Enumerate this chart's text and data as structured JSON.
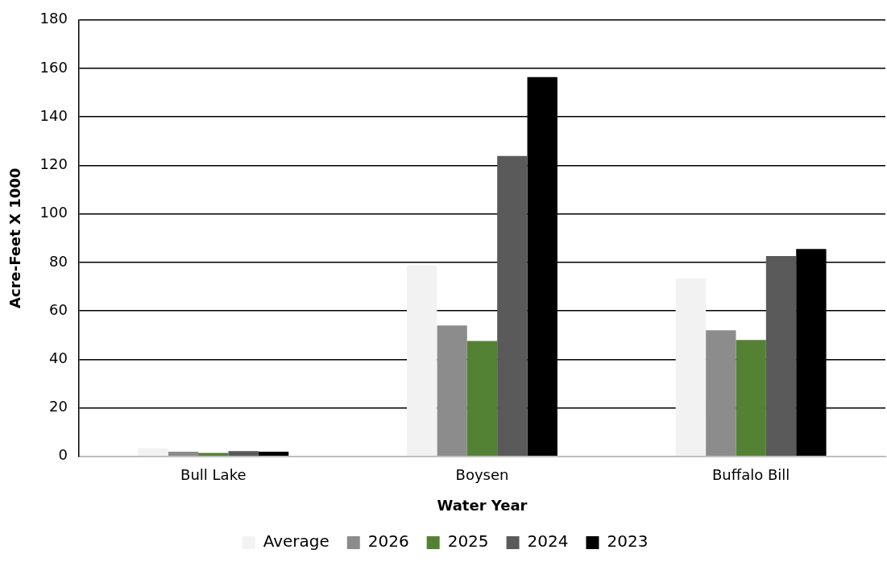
{
  "chart_data": {
    "type": "bar",
    "xlabel": "Water Year",
    "ylabel": "Acre-Feet X 1000",
    "categories": [
      "Bull Lake",
      "Boysen",
      "Buffalo Bill"
    ],
    "series": [
      {
        "name": "Average",
        "color": "#f2f2f2",
        "values": [
          3.3,
          78.7,
          73.4
        ]
      },
      {
        "name": "2026",
        "color": "#8c8c8c",
        "values": [
          1.9,
          54,
          52
        ]
      },
      {
        "name": "2025",
        "color": "#548235",
        "values": [
          1.4,
          47.6,
          48
        ]
      },
      {
        "name": "2024",
        "color": "#5a5a5a",
        "values": [
          2.2,
          123.9,
          82.6
        ]
      },
      {
        "name": "2023",
        "color": "#000000",
        "values": [
          1.9,
          156.4,
          85.5
        ]
      }
    ],
    "ylim": [
      0,
      180
    ],
    "yticks": [
      0,
      20,
      40,
      60,
      80,
      100,
      120,
      140,
      160,
      180
    ],
    "grid": "y",
    "legend": "bottom"
  }
}
